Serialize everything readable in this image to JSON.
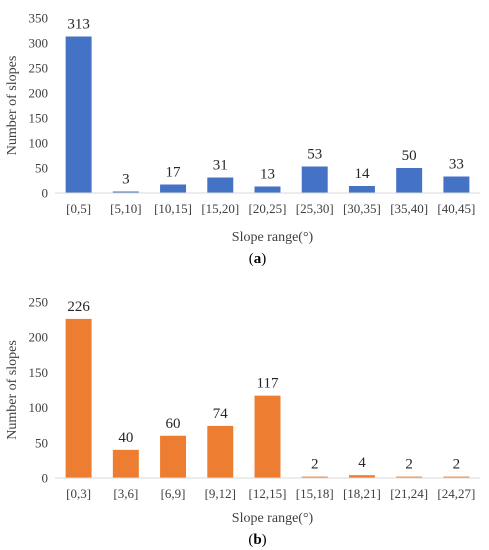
{
  "chart_data": [
    {
      "type": "bar",
      "caption": "a",
      "categories": [
        "[0,5]",
        "[5,10]",
        "[10,15]",
        "[15,20]",
        "[20,25]",
        "[25,30]",
        "[30,35]",
        "[35,40]",
        "[40,45]"
      ],
      "values": [
        313,
        3,
        17,
        31,
        13,
        53,
        14,
        50,
        33
      ],
      "data_labels": [
        "313",
        "3",
        "17",
        "31",
        "13",
        "53",
        "14",
        "50",
        "33"
      ],
      "xlabel": "Slope range(°)",
      "ylabel": "Number of slopes",
      "ylim": [
        0,
        350
      ],
      "yticks": [
        0,
        50,
        100,
        150,
        200,
        250,
        300,
        350
      ],
      "ytick_labels": [
        "0",
        "50",
        "100",
        "150",
        "200",
        "250",
        "300",
        "350"
      ],
      "color": "#4472C4",
      "grid": false,
      "legend": "none"
    },
    {
      "type": "bar",
      "caption": "b",
      "categories": [
        "[0,3]",
        "[3,6]",
        "[6,9]",
        "[9,12]",
        "[12,15]",
        "[15,18]",
        "[18,21]",
        "[21,24]",
        "[24,27]"
      ],
      "values": [
        226,
        40,
        60,
        74,
        117,
        2,
        4,
        2,
        2
      ],
      "data_labels": [
        "226",
        "40",
        "60",
        "74",
        "117",
        "2",
        "4",
        "2",
        "2"
      ],
      "xlabel": "Slope range(°)",
      "ylabel": "Number of slopes",
      "ylim": [
        0,
        250
      ],
      "yticks": [
        0,
        50,
        100,
        150,
        200,
        250
      ],
      "ytick_labels": [
        "0",
        "50",
        "100",
        "150",
        "200",
        "250"
      ],
      "color": "#ED7D31",
      "grid": false,
      "legend": "none"
    }
  ]
}
